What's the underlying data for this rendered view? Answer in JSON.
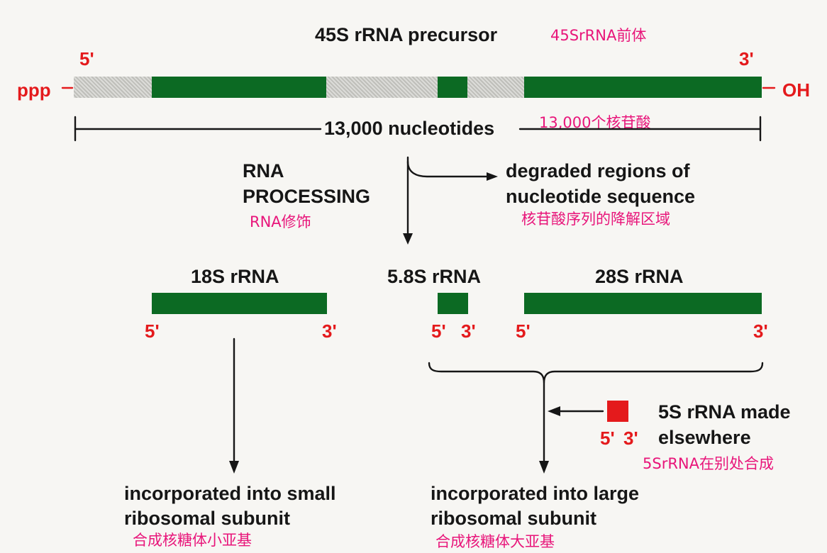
{
  "precursor": {
    "title": "45S rRNA precursor",
    "title_cn": "45SrRNA前体",
    "five_prime": "5'",
    "three_prime": "3'",
    "ppp": "ppp",
    "oh": "OH",
    "length": "13,000 nucleotides",
    "length_cn": "13,000个核苷酸"
  },
  "processing": {
    "label_line1": "RNA",
    "label_line2": "PROCESSING",
    "label_cn": "RNA修饰",
    "degraded_line1": "degraded regions of",
    "degraded_line2": "nucleotide sequence",
    "degraded_cn": "核苷酸序列的降解区域"
  },
  "products": {
    "r18s": {
      "label": "18S rRNA",
      "five": "5'",
      "three": "3'"
    },
    "r58s": {
      "label": "5.8S rRNA",
      "five": "5'",
      "three": "3'"
    },
    "r28s": {
      "label": "28S rRNA",
      "five": "5'",
      "three": "3'"
    }
  },
  "r5s": {
    "line1": "5S rRNA made",
    "line2": "elsewhere",
    "five": "5'",
    "three": "3'",
    "cn": "5SrRNA在别处合成"
  },
  "small_subunit": {
    "line1": "incorporated into small",
    "line2": "ribosomal subunit",
    "cn": "合成核糖体小亚基"
  },
  "large_subunit": {
    "line1": "incorporated into large",
    "line2": "ribosomal subunit",
    "cn": "合成核糖体大亚基"
  },
  "colors": {
    "rna_green": "#0c6a23",
    "spacer_gray": "#c9c9c4",
    "end_red": "#e41a1c",
    "annotation_pink": "#e8157a"
  }
}
